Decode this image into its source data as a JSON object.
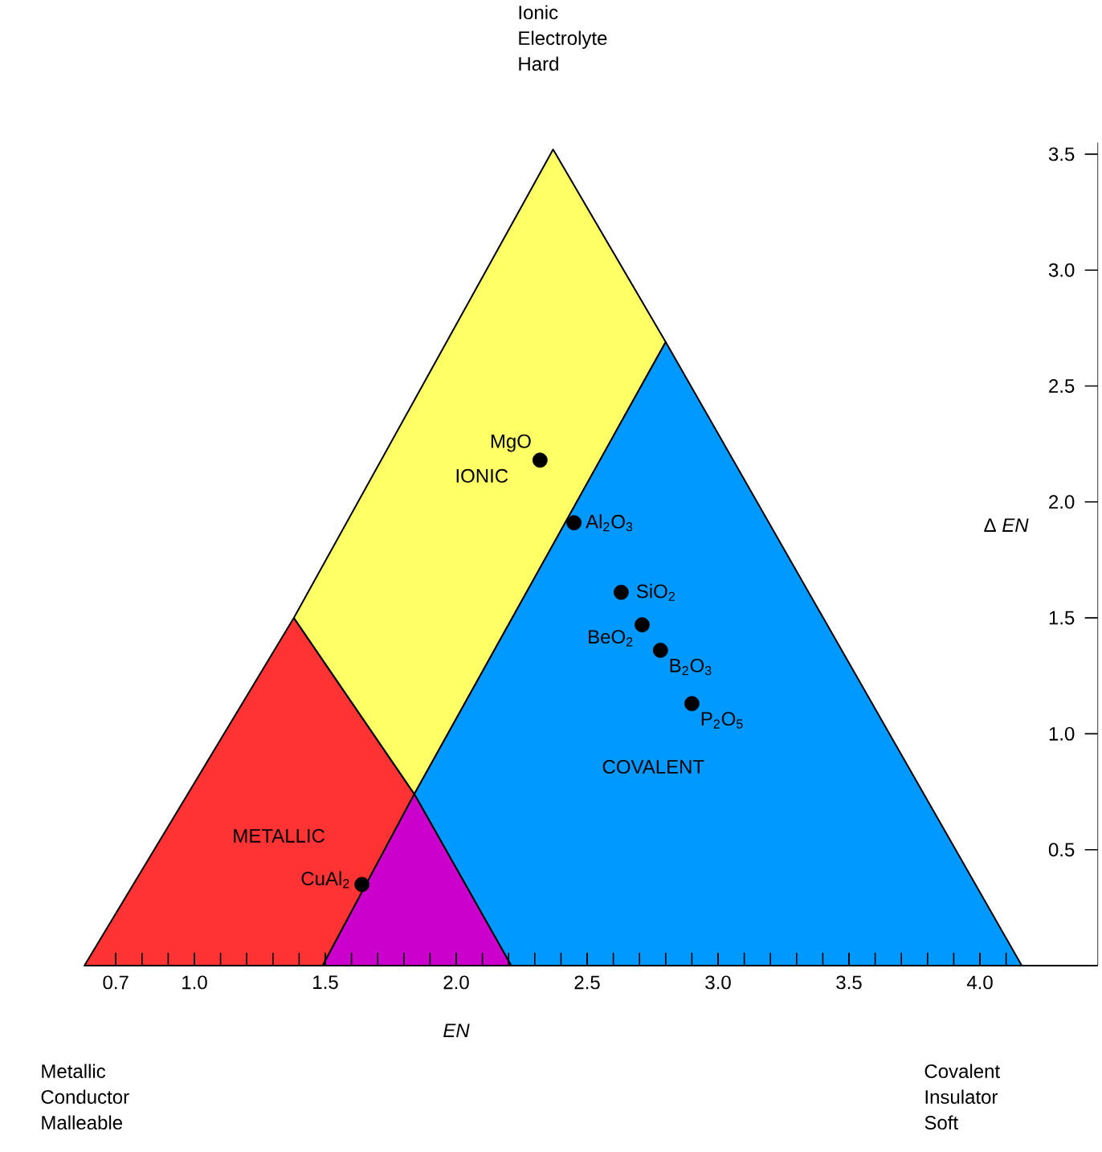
{
  "chart_data": {
    "type": "scatter",
    "xlabel": "EN",
    "ylabel": "Δ *EN*",
    "xlim": [
      0.58,
      4.45
    ],
    "ylim": [
      0,
      3.55
    ],
    "xticks": [
      {
        "value": 0.7,
        "label": "0.7"
      },
      {
        "value": 1.0,
        "label": "1.0"
      },
      {
        "value": 1.5,
        "label": "1.5"
      },
      {
        "value": 2.0,
        "label": "2.0"
      },
      {
        "value": 2.5,
        "label": "2.5"
      },
      {
        "value": 3.0,
        "label": "3.0"
      },
      {
        "value": 3.5,
        "label": "3.5"
      },
      {
        "value": 4.0,
        "label": "4.0"
      }
    ],
    "yticks": [
      {
        "value": 0.5,
        "label": "0.5"
      },
      {
        "value": 1.0,
        "label": "1.0"
      },
      {
        "value": 1.5,
        "label": "1.5"
      },
      {
        "value": 2.0,
        "label": "2.0"
      },
      {
        "value": 2.5,
        "label": "2.5"
      },
      {
        "value": 3.0,
        "label": "3.0"
      },
      {
        "value": 3.5,
        "label": "3.5"
      }
    ],
    "marker": "circle",
    "series": [
      {
        "type": "area",
        "marker": "none",
        "name": "METALLIC",
        "color": "#ff3333",
        "x": [
          0.58,
          1.38,
          1.84,
          1.49
        ],
        "values": [
          0,
          1.5,
          0.74,
          0
        ]
      },
      {
        "type": "area",
        "marker": "none",
        "name": "IONIC",
        "color": "#ffff66",
        "x": [
          1.38,
          2.37,
          2.8,
          1.84
        ],
        "values": [
          1.5,
          3.52,
          2.69,
          0.74
        ]
      },
      {
        "type": "area",
        "marker": "none",
        "name": "COVALENT",
        "color": "#0099ff",
        "x": [
          1.84,
          2.8,
          4.16,
          2.21
        ],
        "values": [
          0.74,
          2.69,
          0,
          0
        ]
      },
      {
        "type": "area",
        "marker": "none",
        "color": "#cc00cc",
        "x": [
          1.49,
          1.84,
          2.21
        ],
        "values": [
          0,
          0.74,
          0
        ]
      },
      {
        "color": "#000000",
        "x": [
          2.32,
          2.45,
          2.63,
          2.71,
          2.78,
          2.9,
          1.64
        ],
        "values": [
          2.18,
          1.91,
          1.61,
          1.47,
          1.36,
          1.13,
          0.35
        ]
      }
    ],
    "annotations": [
      "Ionic Electrolyte Hard",
      "Metallic Conductor Malleable",
      "Covalent Insulator Soft",
      {
        "text": "MgO",
        "x": 2.32,
        "y": 2.18
      },
      {
        "text": "Al$_{2}$O$_{3}$",
        "x": 2.45,
        "y": 1.91
      },
      {
        "text": "SiO$_{2}$",
        "x": 2.63,
        "y": 1.61
      },
      {
        "text": "BeO$_{2}$",
        "x": 2.71,
        "y": 1.47
      },
      {
        "text": "B$_{2}$O$_{3}$",
        "x": 2.78,
        "y": 1.36
      },
      {
        "text": "P$_{2}$O$_{5}$",
        "x": 2.9,
        "y": 1.13
      },
      {
        "text": "CuAl$_{2}$",
        "x": 1.64,
        "y": 0.35
      }
    ]
  }
}
